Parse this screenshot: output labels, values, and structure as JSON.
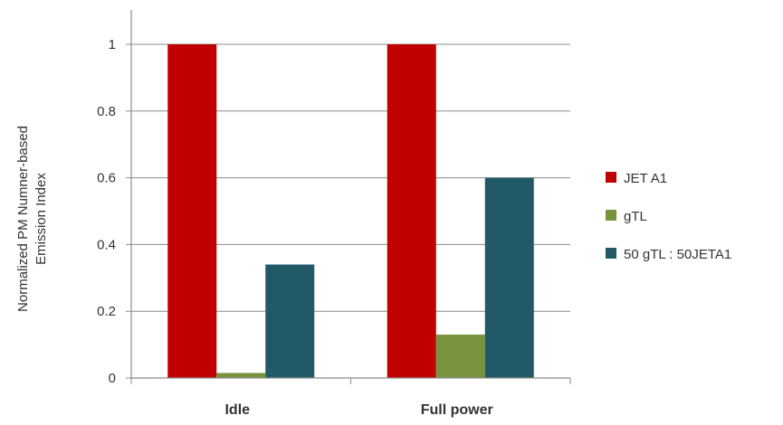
{
  "chart_data": {
    "type": "bar",
    "title": "",
    "xlabel": "",
    "ylabel_lines": [
      "Normalized PM Numner-based",
      "Emission Index"
    ],
    "categories": [
      "Idle",
      "Full power"
    ],
    "ylim": [
      0,
      1
    ],
    "yticks": [
      "0",
      "0.2",
      "0.4",
      "0.6",
      "0.8",
      "1"
    ],
    "grid": true,
    "legend_position": "right",
    "series": [
      {
        "name": "JET A1",
        "color": "#c00000",
        "values": [
          1.0,
          1.0
        ]
      },
      {
        "name": "gTL",
        "color": "#77933c",
        "values": [
          0.015,
          0.13
        ]
      },
      {
        "name": "50 gTL : 50JETA1",
        "color": "#215967",
        "values": [
          0.34,
          0.6
        ]
      }
    ]
  }
}
